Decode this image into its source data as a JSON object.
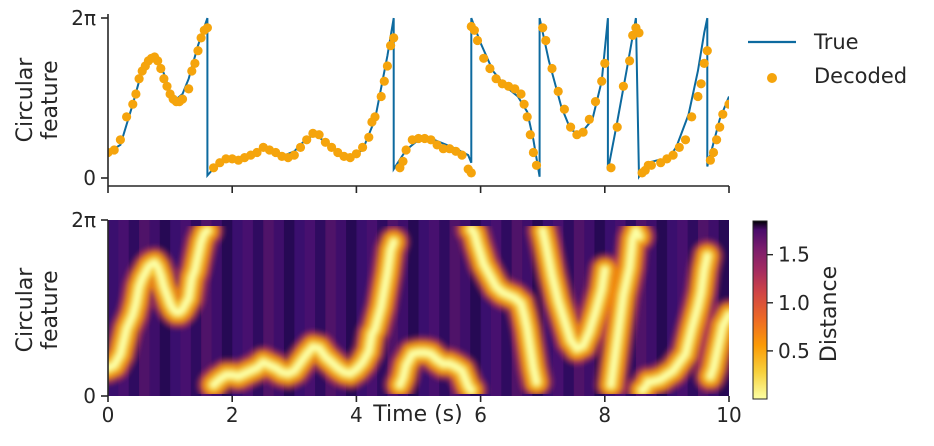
{
  "chart_data": [
    {
      "type": "line+scatter",
      "xlabel": "",
      "ylabel_lines": [
        "Circular",
        "feature"
      ],
      "xlim": [
        0,
        10
      ],
      "ylim_radians": [
        0,
        6.2832
      ],
      "yticks": [
        {
          "value": 0,
          "label": "0"
        },
        {
          "value": 6.2832,
          "label": "2π"
        }
      ],
      "xticks": [
        0,
        2,
        4,
        6,
        8,
        10
      ],
      "legend": {
        "placement": "outside-right",
        "entries": [
          {
            "label": "True",
            "kind": "line"
          },
          {
            "label": "Decoded",
            "kind": "marker"
          }
        ]
      },
      "series": [
        {
          "name": "True",
          "color": "#0d6a9f",
          "points": [
            [
              0,
              1.0
            ],
            [
              0.2,
              1.3
            ],
            [
              0.4,
              2.9
            ],
            [
              0.5,
              3.8
            ],
            [
              0.6,
              4.5
            ],
            [
              0.7,
              4.8
            ],
            [
              0.8,
              4.7
            ],
            [
              0.9,
              4.1
            ],
            [
              1.0,
              3.4
            ],
            [
              1.1,
              3.1
            ],
            [
              1.2,
              3.3
            ],
            [
              1.3,
              3.9
            ],
            [
              1.45,
              5.2
            ],
            [
              1.6,
              6.28
            ],
            [
              1.6,
              0.1
            ],
            [
              1.8,
              0.65
            ],
            [
              2.0,
              0.75
            ],
            [
              2.2,
              0.8
            ],
            [
              2.4,
              1.05
            ],
            [
              2.5,
              1.2
            ],
            [
              2.6,
              1.15
            ],
            [
              2.8,
              0.85
            ],
            [
              3.0,
              1.05
            ],
            [
              3.2,
              1.55
            ],
            [
              3.35,
              1.7
            ],
            [
              3.5,
              1.4
            ],
            [
              3.7,
              1.0
            ],
            [
              3.9,
              0.8
            ],
            [
              4.1,
              1.1
            ],
            [
              4.3,
              2.3
            ],
            [
              4.5,
              4.8
            ],
            [
              4.6,
              6.28
            ],
            [
              4.6,
              0.35
            ],
            [
              4.8,
              1.1
            ],
            [
              5.0,
              1.5
            ],
            [
              5.2,
              1.55
            ],
            [
              5.4,
              1.35
            ],
            [
              5.6,
              1.15
            ],
            [
              5.8,
              0.9
            ],
            [
              5.85,
              0.6
            ],
            [
              5.85,
              6.28
            ],
            [
              6.0,
              5.3
            ],
            [
              6.2,
              4.2
            ],
            [
              6.4,
              3.6
            ],
            [
              6.6,
              3.2
            ],
            [
              6.75,
              2.6
            ],
            [
              6.85,
              1.5
            ],
            [
              6.95,
              0.05
            ],
            [
              6.95,
              6.28
            ],
            [
              7.1,
              4.6
            ],
            [
              7.3,
              2.8
            ],
            [
              7.45,
              1.9
            ],
            [
              7.6,
              1.7
            ],
            [
              7.8,
              2.3
            ],
            [
              7.95,
              3.8
            ],
            [
              8.05,
              6.28
            ],
            [
              8.05,
              0.3
            ],
            [
              8.2,
              2.2
            ],
            [
              8.35,
              4.2
            ],
            [
              8.5,
              6.28
            ],
            [
              8.55,
              0.05
            ],
            [
              8.7,
              0.6
            ],
            [
              8.85,
              0.7
            ],
            [
              9.0,
              0.7
            ],
            [
              9.15,
              1.2
            ],
            [
              9.35,
              2.5
            ],
            [
              9.5,
              4.2
            ],
            [
              9.6,
              5.7
            ],
            [
              9.65,
              6.28
            ],
            [
              9.65,
              0.45
            ],
            [
              9.85,
              2.3
            ],
            [
              10.0,
              3.2
            ]
          ]
        },
        {
          "name": "Decoded",
          "color": "#f5a40c",
          "points": [
            [
              0,
              1.0
            ],
            [
              0.1,
              1.1
            ],
            [
              0.2,
              1.5
            ],
            [
              0.3,
              2.4
            ],
            [
              0.4,
              2.9
            ],
            [
              0.45,
              3.3
            ],
            [
              0.5,
              3.9
            ],
            [
              0.55,
              4.2
            ],
            [
              0.6,
              4.4
            ],
            [
              0.65,
              4.6
            ],
            [
              0.7,
              4.7
            ],
            [
              0.75,
              4.75
            ],
            [
              0.8,
              4.6
            ],
            [
              0.85,
              4.3
            ],
            [
              0.9,
              3.9
            ],
            [
              0.95,
              3.6
            ],
            [
              1.0,
              3.3
            ],
            [
              1.05,
              3.1
            ],
            [
              1.1,
              3.0
            ],
            [
              1.15,
              3.0
            ],
            [
              1.2,
              3.1
            ],
            [
              1.3,
              3.5
            ],
            [
              1.35,
              4.2
            ],
            [
              1.4,
              4.5
            ],
            [
              1.45,
              5.0
            ],
            [
              1.5,
              5.5
            ],
            [
              1.55,
              5.8
            ],
            [
              1.6,
              5.9
            ],
            [
              1.7,
              0.4
            ],
            [
              1.8,
              0.6
            ],
            [
              1.9,
              0.75
            ],
            [
              2.0,
              0.75
            ],
            [
              2.1,
              0.7
            ],
            [
              2.2,
              0.8
            ],
            [
              2.3,
              0.9
            ],
            [
              2.4,
              1.0
            ],
            [
              2.5,
              1.2
            ],
            [
              2.6,
              1.1
            ],
            [
              2.7,
              1.0
            ],
            [
              2.8,
              0.85
            ],
            [
              2.9,
              0.8
            ],
            [
              3.0,
              0.9
            ],
            [
              3.1,
              1.2
            ],
            [
              3.2,
              1.5
            ],
            [
              3.3,
              1.75
            ],
            [
              3.4,
              1.7
            ],
            [
              3.5,
              1.4
            ],
            [
              3.6,
              1.2
            ],
            [
              3.7,
              1.0
            ],
            [
              3.8,
              0.85
            ],
            [
              3.9,
              0.8
            ],
            [
              4.0,
              0.95
            ],
            [
              4.1,
              1.2
            ],
            [
              4.2,
              1.6
            ],
            [
              4.25,
              2.2
            ],
            [
              4.3,
              2.4
            ],
            [
              4.4,
              3.2
            ],
            [
              4.45,
              3.8
            ],
            [
              4.5,
              4.4
            ],
            [
              4.55,
              5.2
            ],
            [
              4.6,
              5.5
            ],
            [
              4.7,
              0.4
            ],
            [
              4.75,
              0.65
            ],
            [
              4.8,
              1.1
            ],
            [
              4.9,
              1.5
            ],
            [
              5.0,
              1.55
            ],
            [
              5.1,
              1.55
            ],
            [
              5.2,
              1.5
            ],
            [
              5.3,
              1.3
            ],
            [
              5.4,
              1.15
            ],
            [
              5.5,
              1.15
            ],
            [
              5.6,
              1.05
            ],
            [
              5.7,
              0.9
            ],
            [
              5.8,
              0.35
            ],
            [
              5.85,
              0.2
            ],
            [
              5.85,
              5.95
            ],
            [
              5.9,
              5.8
            ],
            [
              5.95,
              5.4
            ],
            [
              6.05,
              4.7
            ],
            [
              6.15,
              4.3
            ],
            [
              6.25,
              3.9
            ],
            [
              6.35,
              3.7
            ],
            [
              6.45,
              3.6
            ],
            [
              6.55,
              3.5
            ],
            [
              6.65,
              3.3
            ],
            [
              6.7,
              2.9
            ],
            [
              6.75,
              2.4
            ],
            [
              6.8,
              1.7
            ],
            [
              6.85,
              1.0
            ],
            [
              6.9,
              0.5
            ],
            [
              7.0,
              5.9
            ],
            [
              7.05,
              5.4
            ],
            [
              7.15,
              4.3
            ],
            [
              7.25,
              3.4
            ],
            [
              7.35,
              2.7
            ],
            [
              7.45,
              2.0
            ],
            [
              7.55,
              1.7
            ],
            [
              7.65,
              1.8
            ],
            [
              7.75,
              2.3
            ],
            [
              7.85,
              3.0
            ],
            [
              7.95,
              3.8
            ],
            [
              8.0,
              4.5
            ],
            [
              8.1,
              0.4
            ],
            [
              8.2,
              2.0
            ],
            [
              8.3,
              3.6
            ],
            [
              8.4,
              4.6
            ],
            [
              8.45,
              5.6
            ],
            [
              8.5,
              5.9
            ],
            [
              8.55,
              5.7
            ],
            [
              8.6,
              0.2
            ],
            [
              8.65,
              0.3
            ],
            [
              8.7,
              0.5
            ],
            [
              8.75,
              0.5
            ],
            [
              8.9,
              0.6
            ],
            [
              9.0,
              0.75
            ],
            [
              9.1,
              0.9
            ],
            [
              9.2,
              1.2
            ],
            [
              9.3,
              1.5
            ],
            [
              9.4,
              2.4
            ],
            [
              9.5,
              3.2
            ],
            [
              9.55,
              3.7
            ],
            [
              9.6,
              4.5
            ],
            [
              9.65,
              5.0
            ],
            [
              9.7,
              0.7
            ],
            [
              9.75,
              1.0
            ],
            [
              9.8,
              1.5
            ],
            [
              9.85,
              2.0
            ],
            [
              9.9,
              2.5
            ],
            [
              10.0,
              2.9
            ]
          ]
        }
      ]
    },
    {
      "type": "heatmap",
      "xlabel": "Time (s)",
      "ylabel_lines": [
        "Circular",
        "feature"
      ],
      "xlim": [
        0,
        10
      ],
      "xticks": [
        0,
        2,
        4,
        6,
        8,
        10
      ],
      "yticks": [
        {
          "value": 0,
          "label": "0"
        },
        {
          "value": 6.2832,
          "label": "2π"
        }
      ],
      "colorbar": {
        "label": "Distance",
        "colormap": "inferno_r",
        "vmin": 0,
        "vmax": 1.85,
        "ticks": [
          0.5,
          1.0,
          1.5
        ]
      },
      "description_values": "Distance between decoded trajectory and each circular feature value over time; low distance (bright) follows the decoded trajectory."
    }
  ]
}
